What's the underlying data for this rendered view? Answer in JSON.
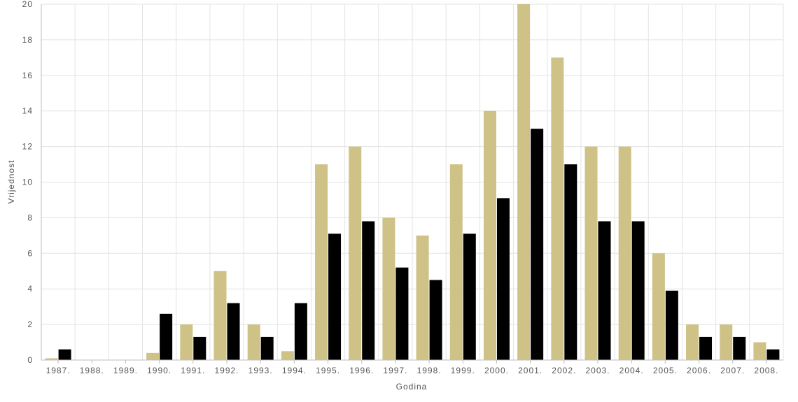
{
  "chart_data": {
    "type": "bar",
    "categories": [
      "1987.",
      "1988.",
      "1989.",
      "1990.",
      "1991.",
      "1992.",
      "1993.",
      "1994.",
      "1995.",
      "1996.",
      "1997.",
      "1998.",
      "1999.",
      "2000.",
      "2001.",
      "2002.",
      "2003.",
      "2004.",
      "2005.",
      "2006.",
      "2007.",
      "2008."
    ],
    "series": [
      {
        "color": "#cfc287",
        "values": [
          0.1,
          0,
          0,
          0.4,
          2,
          5,
          2,
          0.5,
          11,
          12,
          8,
          7,
          11,
          14,
          20,
          17,
          12,
          12,
          6,
          2,
          2,
          1
        ]
      },
      {
        "color": "#000000",
        "values": [
          0.6,
          0,
          0,
          2.6,
          1.3,
          3.2,
          1.3,
          3.2,
          7.1,
          7.8,
          5.2,
          4.5,
          7.1,
          9.1,
          13,
          11,
          7.8,
          7.8,
          3.9,
          1.3,
          1.3,
          0.6
        ]
      }
    ],
    "xlabel": "Godina",
    "ylabel": "Vrijednost",
    "ylim": [
      0,
      20
    ],
    "yticks": [
      "0",
      "2",
      "4",
      "6",
      "8",
      "10",
      "12",
      "14",
      "16",
      "18",
      "20"
    ],
    "grid": true,
    "legend": "none"
  }
}
